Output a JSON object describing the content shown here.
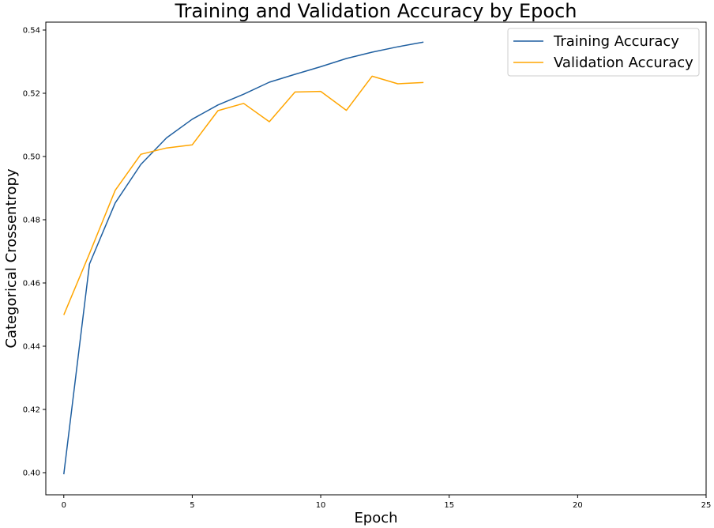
{
  "chart_data": {
    "type": "line",
    "title": "Training and Validation Accuracy by Epoch",
    "xlabel": "Epoch",
    "ylabel": "Categorical Crossentropy",
    "xlim": [
      -0.7,
      25
    ],
    "ylim": [
      0.393,
      0.5425
    ],
    "xticks": [
      0,
      5,
      10,
      15,
      20,
      25
    ],
    "yticks": [
      0.4,
      0.42,
      0.44,
      0.46,
      0.48,
      0.5,
      0.52,
      0.54
    ],
    "grid": false,
    "legend_position": "top-right",
    "x": [
      0,
      1,
      2,
      3,
      4,
      5,
      6,
      7,
      8,
      9,
      10,
      11,
      12,
      13,
      14
    ],
    "series": [
      {
        "name": "Training Accuracy",
        "color": "#1f5fa0",
        "values": [
          0.3995,
          0.466,
          0.4853,
          0.4975,
          0.5059,
          0.5118,
          0.5163,
          0.5197,
          0.5235,
          0.526,
          0.5284,
          0.531,
          0.533,
          0.5347,
          0.5362
        ]
      },
      {
        "name": "Validation Accuracy",
        "color": "#ffa500",
        "values": [
          0.4499,
          0.4693,
          0.4893,
          0.5007,
          0.5027,
          0.5037,
          0.5145,
          0.5168,
          0.511,
          0.5204,
          0.5206,
          0.5146,
          0.5254,
          0.523,
          0.5234
        ]
      }
    ]
  }
}
